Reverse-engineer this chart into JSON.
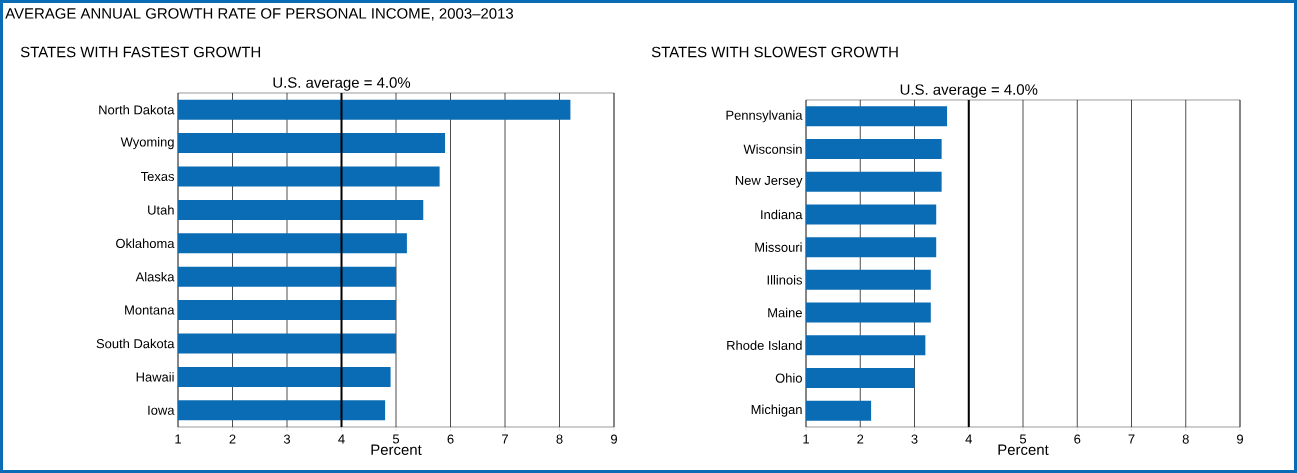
{
  "chart_data": [
    {
      "type": "bar",
      "orientation": "horizontal",
      "title": "AVERAGE ANNUAL GROWTH RATE OF PERSONAL INCOME, 2003–2013",
      "subtitle": "STATES WITH FASTEST GROWTH",
      "categories": [
        "North Dakota",
        "Wyoming",
        "Texas",
        "Utah",
        "Oklahoma",
        "Alaska",
        "Montana",
        "South Dakota",
        "Hawaii",
        "Iowa"
      ],
      "values": [
        8.2,
        5.9,
        5.8,
        5.5,
        5.2,
        5.0,
        5.0,
        5.0,
        4.9,
        4.8
      ],
      "color": "#0a6cb4",
      "xlim": [
        1,
        9
      ],
      "xticks": [
        1,
        2,
        3,
        4,
        5,
        6,
        7,
        8,
        9
      ],
      "xlabel": "Percent",
      "grid": "x",
      "ref_lines": [
        {
          "axis": "x",
          "value": 4.0,
          "label": "U.S. average = 4.0%"
        }
      ]
    },
    {
      "type": "bar",
      "orientation": "horizontal",
      "subtitle": "STATES WITH SLOWEST GROWTH",
      "categories": [
        "Pennsylvania",
        "Wisconsin",
        "New Jersey",
        "Indiana",
        "Missouri",
        "Illinois",
        "Maine",
        "Rhode Island",
        "Ohio",
        "Michigan"
      ],
      "values": [
        3.6,
        3.5,
        3.5,
        3.4,
        3.4,
        3.3,
        3.3,
        3.2,
        3.0,
        2.2
      ],
      "color": "#0a6cb4",
      "xlim": [
        1,
        9
      ],
      "xticks": [
        1,
        2,
        3,
        4,
        5,
        6,
        7,
        8,
        9
      ],
      "xlabel": "Percent",
      "grid": "x",
      "ref_lines": [
        {
          "axis": "x",
          "value": 4.0,
          "label": "U.S. average = 4.0%"
        }
      ]
    }
  ]
}
